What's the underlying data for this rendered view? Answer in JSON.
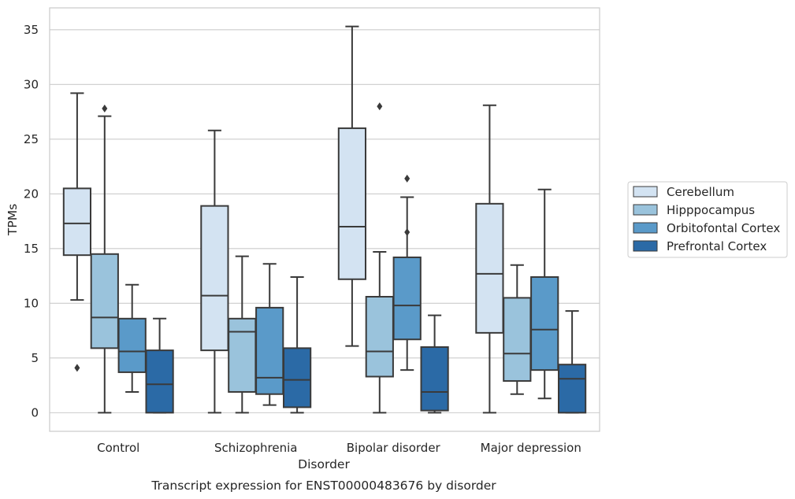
{
  "chart_data": {
    "type": "box",
    "xlabel": "Disorder",
    "ylabel": "TPMs",
    "caption": "Transcript expression for ENST00000483676 by disorder",
    "ylim": [
      -1.7,
      37
    ],
    "yticks": [
      0,
      5,
      10,
      15,
      20,
      25,
      30,
      35
    ],
    "grid": "horizontal",
    "legend_position": "right",
    "categories": [
      "Control",
      "Schizophrenia",
      "Bipolar disorder",
      "Major depression"
    ],
    "series": [
      {
        "name": "Cerebellum",
        "color": "#d3e3f2",
        "boxes": [
          {
            "whisker_low": 10.3,
            "q1": 14.4,
            "median": 17.3,
            "q3": 20.5,
            "whisker_high": 29.2,
            "outliers": [
              4.1
            ]
          },
          {
            "whisker_low": 0,
            "q1": 5.7,
            "median": 10.7,
            "q3": 18.9,
            "whisker_high": 25.8,
            "outliers": []
          },
          {
            "whisker_low": 6.1,
            "q1": 12.2,
            "median": 17.0,
            "q3": 26.0,
            "whisker_high": 35.3,
            "outliers": []
          },
          {
            "whisker_low": 0,
            "q1": 7.3,
            "median": 12.7,
            "q3": 19.1,
            "whisker_high": 28.1,
            "outliers": []
          }
        ]
      },
      {
        "name": "Hipppocampus",
        "color": "#9ac3dc",
        "boxes": [
          {
            "whisker_low": 0,
            "q1": 5.9,
            "median": 8.7,
            "q3": 14.5,
            "whisker_high": 27.1,
            "outliers": [
              27.8
            ]
          },
          {
            "whisker_low": 0,
            "q1": 1.9,
            "median": 7.4,
            "q3": 8.6,
            "whisker_high": 14.3,
            "outliers": []
          },
          {
            "whisker_low": 0,
            "q1": 3.3,
            "median": 5.6,
            "q3": 10.6,
            "whisker_high": 14.7,
            "outliers": [
              28.0
            ]
          },
          {
            "whisker_low": 1.7,
            "q1": 2.9,
            "median": 5.4,
            "q3": 10.5,
            "whisker_high": 13.5,
            "outliers": []
          }
        ]
      },
      {
        "name": "Orbitofontal Cortex",
        "color": "#5a9ac9",
        "boxes": [
          {
            "whisker_low": 1.9,
            "q1": 3.7,
            "median": 5.6,
            "q3": 8.6,
            "whisker_high": 11.7,
            "outliers": []
          },
          {
            "whisker_low": 0.7,
            "q1": 1.7,
            "median": 3.2,
            "q3": 9.6,
            "whisker_high": 13.6,
            "outliers": []
          },
          {
            "whisker_low": 3.9,
            "q1": 6.7,
            "median": 9.8,
            "q3": 14.2,
            "whisker_high": 19.7,
            "outliers": [
              16.5,
              21.4
            ]
          },
          {
            "whisker_low": 1.3,
            "q1": 3.9,
            "median": 7.6,
            "q3": 12.4,
            "whisker_high": 20.4,
            "outliers": []
          }
        ]
      },
      {
        "name": "Prefrontal Cortex",
        "color": "#2b6aa6",
        "boxes": [
          {
            "whisker_low": 0,
            "q1": 0,
            "median": 2.6,
            "q3": 5.7,
            "whisker_high": 8.6,
            "outliers": []
          },
          {
            "whisker_low": 0,
            "q1": 0.5,
            "median": 3.0,
            "q3": 5.9,
            "whisker_high": 12.4,
            "outliers": []
          },
          {
            "whisker_low": 0,
            "q1": 0.2,
            "median": 1.9,
            "q3": 6.0,
            "whisker_high": 8.9,
            "outliers": []
          },
          {
            "whisker_low": 0,
            "q1": 0,
            "median": 3.1,
            "q3": 4.4,
            "whisker_high": 9.3,
            "outliers": []
          }
        ]
      }
    ]
  }
}
